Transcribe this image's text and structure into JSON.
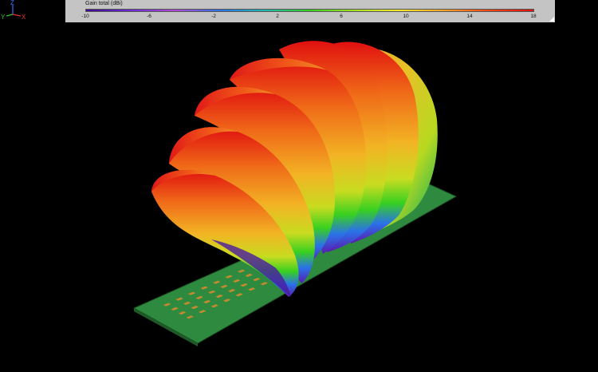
{
  "colorbar": {
    "title": "Gain total (dBi)",
    "ticks": [
      "-10",
      "-6",
      "-2",
      "2",
      "6",
      "10",
      "14",
      "18"
    ],
    "stops": [
      "#3a0a8c",
      "#6a2bd8",
      "#b24ad2",
      "#2a72e8",
      "#1fb8b0",
      "#38d020",
      "#a8e024",
      "#f8e82a",
      "#f8a428",
      "#f04818",
      "#e01010"
    ]
  },
  "axes": {
    "x_label": "X",
    "y_label": "Y",
    "z_label": "Z",
    "x_color": "#e03030",
    "y_color": "#30c030",
    "z_color": "#3070ff"
  },
  "board": {
    "substrate_color": "#2e8a3e",
    "edge_color": "#1e5a28",
    "patch_color": "#c08a30"
  }
}
